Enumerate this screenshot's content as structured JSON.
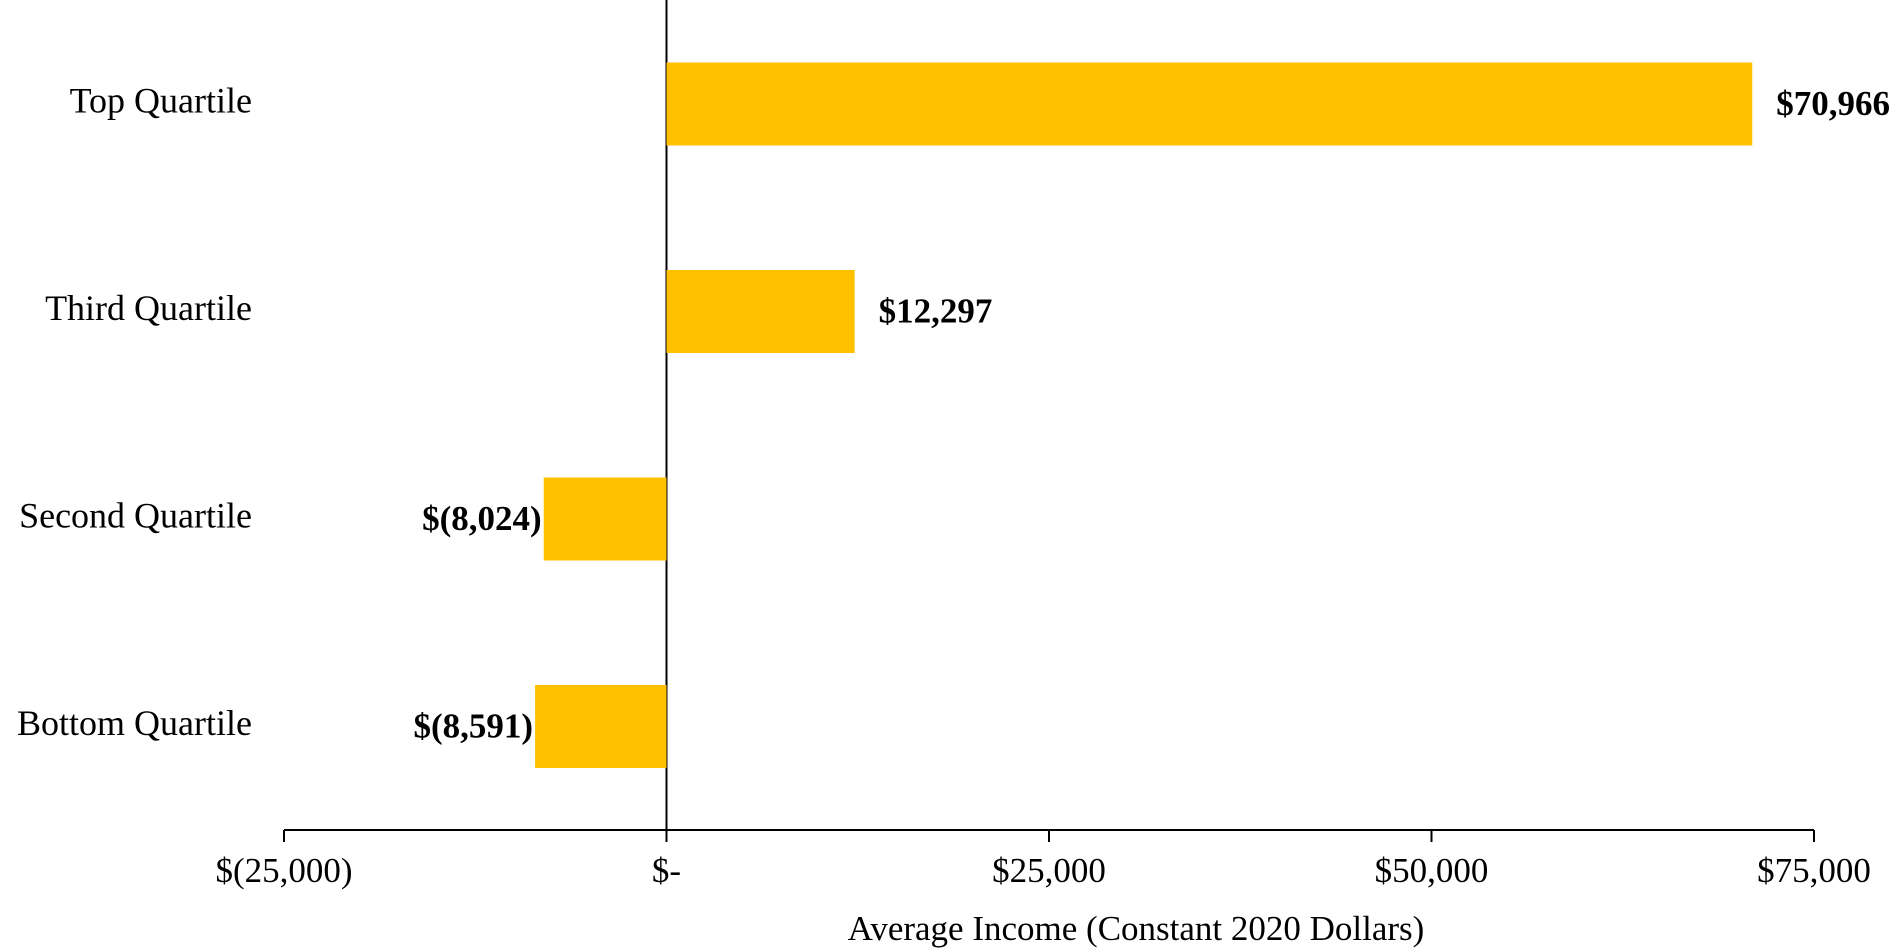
{
  "chart_data": {
    "type": "hbar",
    "categories": [
      "Top Quartile",
      "Third Quartile",
      "Second Quartile",
      "Bottom Quartile"
    ],
    "values": [
      70966,
      12297,
      -8024,
      -8591
    ],
    "value_labels": [
      "$70,966",
      "$12,297",
      "$(8,024)",
      "$(8,591)"
    ],
    "color": "#ffc000",
    "x_label": "Average Income (Constant 2020 Dollars)",
    "xlim": [
      -25000,
      75000
    ],
    "xticks": [
      {
        "value": -25000,
        "label": "$(25,000)"
      },
      {
        "value": 0,
        "label": "$-"
      },
      {
        "value": 25000,
        "label": "$25,000"
      },
      {
        "value": 50000,
        "label": "$50,000"
      },
      {
        "value": 75000,
        "label": "$75,000"
      }
    ],
    "grid": false
  }
}
